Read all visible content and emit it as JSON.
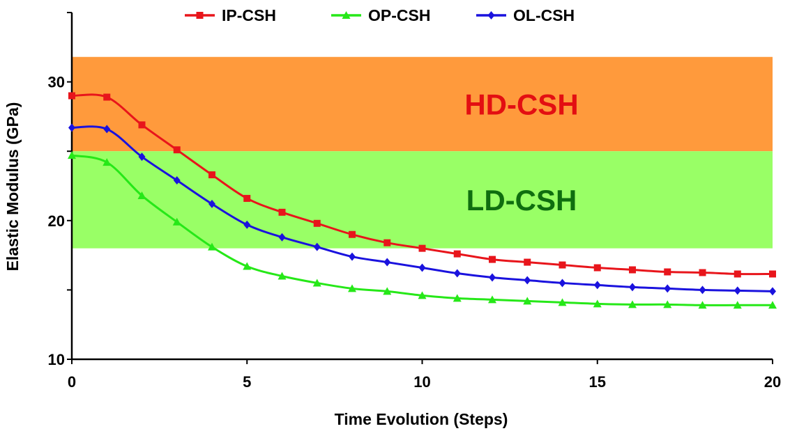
{
  "chart_data": {
    "type": "line",
    "title": "",
    "xlabel": "Time Evolution (Steps)",
    "ylabel": "Elastic Modulus (GPa)",
    "xlim": [
      0,
      20
    ],
    "ylim": [
      10,
      35
    ],
    "xticks": [
      0,
      5,
      10,
      15,
      20
    ],
    "yticks": [
      10,
      20,
      30
    ],
    "legend_position": "top",
    "grid": false,
    "x": [
      0,
      1,
      2,
      3,
      4,
      5,
      6,
      7,
      8,
      9,
      10,
      11,
      12,
      13,
      14,
      15,
      16,
      17,
      18,
      19,
      20
    ],
    "series": [
      {
        "name": "IP-CSH",
        "color": "#e8151b",
        "marker": "square",
        "values": [
          29.0,
          28.9,
          26.9,
          25.1,
          23.3,
          21.6,
          20.6,
          19.8,
          19.0,
          18.4,
          18.0,
          17.6,
          17.2,
          17.0,
          16.8,
          16.6,
          16.45,
          16.3,
          16.25,
          16.15,
          16.15
        ]
      },
      {
        "name": "OP-CSH",
        "color": "#26e818",
        "marker": "triangle",
        "values": [
          24.7,
          24.2,
          21.8,
          19.9,
          18.1,
          16.7,
          16.0,
          15.5,
          15.1,
          14.9,
          14.6,
          14.4,
          14.3,
          14.2,
          14.1,
          14.0,
          13.95,
          13.95,
          13.9,
          13.9,
          13.9
        ]
      },
      {
        "name": "OL-CSH",
        "color": "#1a12de",
        "marker": "diamond",
        "values": [
          26.7,
          26.6,
          24.6,
          22.9,
          21.2,
          19.7,
          18.8,
          18.1,
          17.4,
          17.0,
          16.6,
          16.2,
          15.9,
          15.7,
          15.5,
          15.35,
          15.2,
          15.1,
          15.0,
          14.95,
          14.9
        ]
      }
    ],
    "bands": [
      {
        "label": "HD-CSH",
        "from": 25,
        "to": 31.8,
        "color": "#ff9a3c",
        "label_color": "#e30f12"
      },
      {
        "label": "LD-CSH",
        "from": 18,
        "to": 25,
        "color": "#99ff66",
        "label_color": "#0f6e0f"
      }
    ]
  }
}
